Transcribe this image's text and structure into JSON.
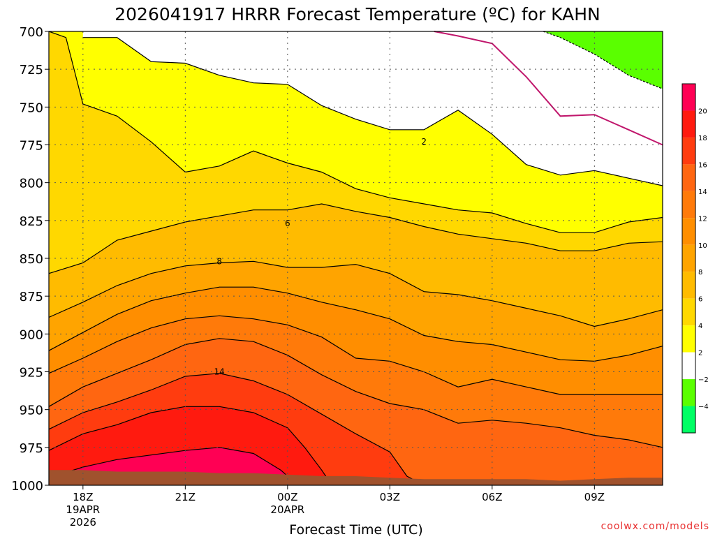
{
  "chart_data": {
    "type": "heatmap",
    "title": "2026041917 HRRR Forecast Temperature (ºC) for KAHN",
    "xlabel": "Forecast Time (UTC)",
    "ylabel": "",
    "y_axis": {
      "label": "",
      "ticks": [
        700,
        725,
        750,
        775,
        800,
        825,
        850,
        875,
        900,
        925,
        950,
        975,
        1000
      ],
      "ylim": [
        1000,
        700
      ],
      "reversed": true
    },
    "x_axis": {
      "ticks": [
        {
          "hour": 18,
          "label": "18Z",
          "date1": "19APR",
          "date2": "2026"
        },
        {
          "hour": 21,
          "label": "21Z",
          "date1": "",
          "date2": ""
        },
        {
          "hour": 24,
          "label": "00Z",
          "date1": "20APR",
          "date2": ""
        },
        {
          "hour": 27,
          "label": "03Z",
          "date1": "",
          "date2": ""
        },
        {
          "hour": 30,
          "label": "06Z",
          "date1": "",
          "date2": ""
        },
        {
          "hour": 33,
          "label": "09Z",
          "date1": "",
          "date2": ""
        }
      ],
      "xlim": [
        17,
        35
      ]
    },
    "grid": true,
    "colorbar": {
      "placement": "right",
      "tick_labels": [
        "20",
        "18",
        "16",
        "14",
        "12",
        "10",
        "8",
        "6",
        "4",
        "2",
        "−2",
        "−4"
      ],
      "bins": [
        {
          "range": "20 to 22",
          "color": "#ff0054"
        },
        {
          "range": "18 to 20",
          "color": "#ff1a0f"
        },
        {
          "range": "16 to 18",
          "color": "#ff3c0f"
        },
        {
          "range": "14 to 16",
          "color": "#ff6611"
        },
        {
          "range": "12 to 14",
          "color": "#ff7a0a"
        },
        {
          "range": "10 to 12",
          "color": "#ff8e00"
        },
        {
          "range": "8 to 10",
          "color": "#ffa400"
        },
        {
          "range": "6 to 8",
          "color": "#ffbb00"
        },
        {
          "range": "4 to 6",
          "color": "#ffd800"
        },
        {
          "range": "2 to 4",
          "color": "#ffff00"
        },
        {
          "range": "-2 to 2",
          "color": "#ffffff"
        },
        {
          "range": "-4 to -2",
          "color": "#5aff00"
        },
        {
          "range": "-6 to -4",
          "color": "#00ff64"
        }
      ]
    },
    "contour_labels": [
      {
        "value": "2",
        "hour": 28.0,
        "pressure": 773
      },
      {
        "value": "6",
        "hour": 24.0,
        "pressure": 827
      },
      {
        "value": "8",
        "hour": 22.0,
        "pressure": 852
      },
      {
        "value": "14",
        "hour": 22.0,
        "pressure": 925
      }
    ],
    "credit": "coolwx.com/models",
    "colors": {
      "ground": "#a0522d",
      "freezing_line": "#c0166c",
      "contour": "#000000"
    },
    "fields": [
      {
        "name": "6to8",
        "color": "#ffbb00",
        "boundary": [
          [
            17,
            860
          ],
          [
            18,
            853
          ],
          [
            19,
            838
          ],
          [
            20,
            832
          ],
          [
            21,
            826
          ],
          [
            22,
            822
          ],
          [
            23,
            818
          ],
          [
            24,
            818
          ],
          [
            25,
            814
          ],
          [
            26,
            819
          ],
          [
            27,
            823
          ],
          [
            28,
            829
          ],
          [
            29,
            834
          ],
          [
            30,
            837
          ],
          [
            31,
            840
          ],
          [
            32,
            845
          ],
          [
            33,
            845
          ],
          [
            34,
            840
          ],
          [
            35,
            839
          ]
        ]
      },
      {
        "name": "8to10",
        "color": "#ffa400",
        "boundary": [
          [
            17,
            889
          ],
          [
            18,
            879
          ],
          [
            19,
            868
          ],
          [
            20,
            860
          ],
          [
            21,
            855
          ],
          [
            22,
            853
          ],
          [
            23,
            852
          ],
          [
            24,
            856
          ],
          [
            25,
            856
          ],
          [
            26,
            854
          ],
          [
            27,
            860
          ],
          [
            28,
            872
          ],
          [
            29,
            874
          ],
          [
            30,
            878
          ],
          [
            31,
            883
          ],
          [
            32,
            888
          ],
          [
            33,
            895
          ],
          [
            34,
            890
          ],
          [
            35,
            884
          ]
        ]
      },
      {
        "name": "10to12",
        "color": "#ff8e00",
        "boundary": [
          [
            17,
            911
          ],
          [
            18,
            899
          ],
          [
            19,
            887
          ],
          [
            20,
            878
          ],
          [
            21,
            873
          ],
          [
            22,
            869
          ],
          [
            23,
            869
          ],
          [
            24,
            873
          ],
          [
            25,
            879
          ],
          [
            26,
            884
          ],
          [
            27,
            890
          ],
          [
            28,
            901
          ],
          [
            29,
            905
          ],
          [
            30,
            907
          ],
          [
            31,
            912
          ],
          [
            32,
            917
          ],
          [
            33,
            918
          ],
          [
            34,
            914
          ],
          [
            35,
            908
          ]
        ]
      },
      {
        "name": "12to14",
        "color": "#ff7a0a",
        "boundary": [
          [
            17,
            926
          ],
          [
            18,
            916
          ],
          [
            19,
            905
          ],
          [
            20,
            896
          ],
          [
            21,
            890
          ],
          [
            22,
            888
          ],
          [
            23,
            890
          ],
          [
            24,
            894
          ],
          [
            25,
            902
          ],
          [
            26,
            916
          ],
          [
            27,
            918
          ],
          [
            28,
            925
          ],
          [
            29,
            935
          ],
          [
            30,
            930
          ],
          [
            31,
            935
          ],
          [
            32,
            940
          ],
          [
            33,
            940
          ],
          [
            34,
            940
          ],
          [
            35,
            940
          ]
        ]
      },
      {
        "name": "14to16",
        "color": "#ff6611",
        "boundary": [
          [
            17,
            948
          ],
          [
            18,
            935
          ],
          [
            19,
            926
          ],
          [
            20,
            917
          ],
          [
            21,
            907
          ],
          [
            22,
            903
          ],
          [
            23,
            905
          ],
          [
            24,
            914
          ],
          [
            25,
            927
          ],
          [
            26,
            938
          ],
          [
            27,
            946
          ],
          [
            28,
            950
          ],
          [
            29,
            959
          ],
          [
            30,
            957
          ],
          [
            31,
            959
          ],
          [
            32,
            962
          ],
          [
            33,
            967
          ],
          [
            34,
            970
          ],
          [
            35,
            975
          ]
        ]
      },
      {
        "name": "16to18",
        "color": "#ff3c0f",
        "boundary": [
          [
            17,
            963
          ],
          [
            18,
            952
          ],
          [
            19,
            945
          ],
          [
            20,
            937
          ],
          [
            21,
            928
          ],
          [
            22,
            926
          ],
          [
            23,
            931
          ],
          [
            24,
            940
          ],
          [
            25,
            953
          ],
          [
            26,
            966
          ],
          [
            27,
            978
          ],
          [
            27.5,
            994
          ],
          [
            28,
            1000
          ]
        ]
      },
      {
        "name": "18to20",
        "color": "#ff1a0f",
        "boundary": [
          [
            17,
            977
          ],
          [
            18,
            966
          ],
          [
            19,
            960
          ],
          [
            20,
            952
          ],
          [
            21,
            948
          ],
          [
            22,
            948
          ],
          [
            23,
            952
          ],
          [
            24,
            962
          ],
          [
            24.5,
            975
          ],
          [
            25,
            990
          ],
          [
            25.3,
            1000
          ]
        ]
      },
      {
        "name": "20to22",
        "color": "#ff0054",
        "boundary": [
          [
            17.3,
            993
          ],
          [
            18,
            988
          ],
          [
            19,
            983
          ],
          [
            20,
            980
          ],
          [
            21,
            977
          ],
          [
            22,
            975
          ],
          [
            23,
            979
          ],
          [
            23.8,
            990
          ],
          [
            24.2,
            998
          ],
          [
            24.4,
            1000
          ]
        ]
      }
    ],
    "cold_zones": {
      "upper_white_boundary": [
        [
          18,
          704
        ],
        [
          19,
          704
        ],
        [
          20,
          720
        ],
        [
          21,
          721
        ],
        [
          22,
          729
        ],
        [
          23,
          734
        ],
        [
          24,
          735
        ],
        [
          25,
          749
        ],
        [
          26,
          758
        ],
        [
          27,
          765
        ],
        [
          28,
          765
        ],
        [
          29,
          752
        ],
        [
          30,
          768
        ],
        [
          31,
          788
        ],
        [
          32,
          795
        ],
        [
          33,
          792
        ],
        [
          34,
          797
        ],
        [
          35,
          802
        ]
      ],
      "lower_yellow_boundary": [
        [
          17,
          700
        ],
        [
          17.5,
          704
        ],
        [
          18,
          748
        ],
        [
          19,
          756
        ],
        [
          20,
          773
        ],
        [
          21,
          793
        ],
        [
          22,
          789
        ],
        [
          23,
          779
        ],
        [
          24,
          787
        ],
        [
          25,
          793
        ],
        [
          26,
          804
        ],
        [
          27,
          810
        ],
        [
          28,
          814
        ],
        [
          29,
          818
        ],
        [
          30,
          820
        ],
        [
          31,
          827
        ],
        [
          32,
          833
        ],
        [
          33,
          833
        ],
        [
          34,
          826
        ],
        [
          35,
          823
        ]
      ],
      "freezing_line": [
        [
          28.3,
          700
        ],
        [
          29,
          703
        ],
        [
          30,
          708
        ],
        [
          31,
          730
        ],
        [
          32,
          756
        ],
        [
          33,
          755
        ],
        [
          34,
          765
        ],
        [
          35,
          775
        ]
      ],
      "minus2_line": [
        [
          31.5,
          700
        ],
        [
          32,
          704
        ],
        [
          33,
          715
        ],
        [
          34,
          729
        ],
        [
          35,
          738
        ]
      ]
    },
    "ground_top": [
      [
        17,
        990
      ],
      [
        18,
        990
      ],
      [
        19,
        991
      ],
      [
        20,
        991
      ],
      [
        21,
        991
      ],
      [
        22,
        992
      ],
      [
        23,
        992
      ],
      [
        24,
        993
      ],
      [
        25,
        994
      ],
      [
        26,
        994
      ],
      [
        27,
        995
      ],
      [
        28,
        996
      ],
      [
        29,
        996
      ],
      [
        30,
        996
      ],
      [
        31,
        996
      ],
      [
        32,
        997
      ],
      [
        33,
        996
      ],
      [
        34,
        995
      ],
      [
        35,
        995
      ]
    ]
  }
}
